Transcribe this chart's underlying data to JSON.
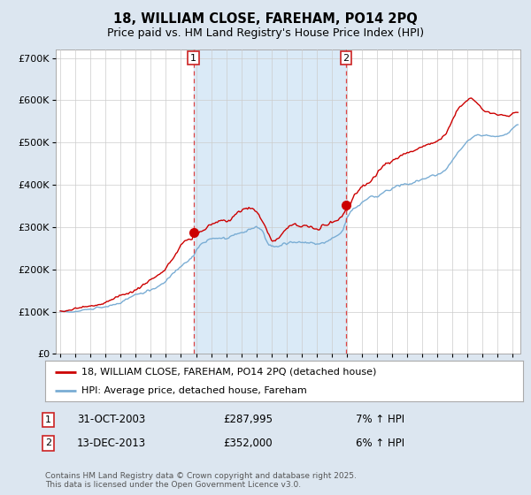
{
  "title": "18, WILLIAM CLOSE, FAREHAM, PO14 2PQ",
  "subtitle": "Price paid vs. HM Land Registry's House Price Index (HPI)",
  "ylim": [
    0,
    700000
  ],
  "xlim_start": 1994.7,
  "xlim_end": 2025.5,
  "sale1_x": 2003.83,
  "sale1_y": 287995,
  "sale1_label": "1",
  "sale1_date": "31-OCT-2003",
  "sale1_price": "£287,995",
  "sale1_hpi": "7% ↑ HPI",
  "sale2_x": 2013.95,
  "sale2_y": 352000,
  "sale2_label": "2",
  "sale2_date": "13-DEC-2013",
  "sale2_price": "£352,000",
  "sale2_hpi": "6% ↑ HPI",
  "line_color_red": "#cc0000",
  "line_color_blue": "#7aadd4",
  "fill_color_blue": "#d0e4f2",
  "shade_color": "#daeaf7",
  "bg_color": "#dce6f0",
  "plot_bg": "#ffffff",
  "grid_color": "#cccccc",
  "legend_label_red": "18, WILLIAM CLOSE, FAREHAM, PO14 2PQ (detached house)",
  "legend_label_blue": "HPI: Average price, detached house, Fareham",
  "footnote": "Contains HM Land Registry data © Crown copyright and database right 2025.\nThis data is licensed under the Open Government Licence v3.0.",
  "hpi_pts": [
    [
      1995.0,
      100000
    ],
    [
      1995.25,
      101000
    ],
    [
      1995.5,
      101500
    ],
    [
      1995.75,
      102000
    ],
    [
      1996.0,
      103000
    ],
    [
      1996.25,
      104000
    ],
    [
      1996.5,
      105500
    ],
    [
      1996.75,
      107000
    ],
    [
      1997.0,
      109000
    ],
    [
      1997.25,
      111000
    ],
    [
      1997.5,
      114000
    ],
    [
      1997.75,
      117000
    ],
    [
      1998.0,
      120000
    ],
    [
      1998.25,
      122000
    ],
    [
      1998.5,
      124000
    ],
    [
      1998.75,
      126000
    ],
    [
      1999.0,
      128000
    ],
    [
      1999.25,
      131000
    ],
    [
      1999.5,
      135000
    ],
    [
      1999.75,
      139000
    ],
    [
      2000.0,
      143000
    ],
    [
      2000.25,
      147000
    ],
    [
      2000.5,
      150000
    ],
    [
      2000.75,
      153000
    ],
    [
      2001.0,
      156000
    ],
    [
      2001.25,
      161000
    ],
    [
      2001.5,
      166000
    ],
    [
      2001.75,
      171000
    ],
    [
      2002.0,
      177000
    ],
    [
      2002.25,
      185000
    ],
    [
      2002.5,
      194000
    ],
    [
      2002.75,
      203000
    ],
    [
      2003.0,
      213000
    ],
    [
      2003.25,
      222000
    ],
    [
      2003.5,
      230000
    ],
    [
      2003.75,
      238000
    ],
    [
      2003.83,
      240000
    ],
    [
      2004.0,
      248000
    ],
    [
      2004.25,
      256000
    ],
    [
      2004.5,
      260000
    ],
    [
      2004.75,
      263000
    ],
    [
      2005.0,
      265000
    ],
    [
      2005.25,
      267000
    ],
    [
      2005.5,
      268000
    ],
    [
      2005.75,
      269000
    ],
    [
      2006.0,
      271000
    ],
    [
      2006.25,
      275000
    ],
    [
      2006.5,
      280000
    ],
    [
      2006.75,
      286000
    ],
    [
      2007.0,
      291000
    ],
    [
      2007.25,
      297000
    ],
    [
      2007.5,
      302000
    ],
    [
      2007.75,
      305000
    ],
    [
      2008.0,
      305000
    ],
    [
      2008.25,
      300000
    ],
    [
      2008.5,
      290000
    ],
    [
      2008.75,
      277000
    ],
    [
      2009.0,
      267000
    ],
    [
      2009.25,
      265000
    ],
    [
      2009.5,
      270000
    ],
    [
      2009.75,
      276000
    ],
    [
      2010.0,
      281000
    ],
    [
      2010.25,
      284000
    ],
    [
      2010.5,
      285000
    ],
    [
      2010.75,
      284000
    ],
    [
      2011.0,
      283000
    ],
    [
      2011.25,
      283000
    ],
    [
      2011.5,
      282000
    ],
    [
      2011.75,
      281000
    ],
    [
      2012.0,
      280000
    ],
    [
      2012.25,
      281000
    ],
    [
      2012.5,
      283000
    ],
    [
      2012.75,
      285000
    ],
    [
      2013.0,
      288000
    ],
    [
      2013.25,
      292000
    ],
    [
      2013.5,
      298000
    ],
    [
      2013.75,
      308000
    ],
    [
      2013.95,
      325000
    ],
    [
      2014.0,
      335000
    ],
    [
      2014.25,
      350000
    ],
    [
      2014.5,
      360000
    ],
    [
      2014.75,
      368000
    ],
    [
      2015.0,
      373000
    ],
    [
      2015.25,
      378000
    ],
    [
      2015.5,
      382000
    ],
    [
      2015.75,
      385000
    ],
    [
      2016.0,
      388000
    ],
    [
      2016.25,
      393000
    ],
    [
      2016.5,
      398000
    ],
    [
      2016.75,
      402000
    ],
    [
      2017.0,
      405000
    ],
    [
      2017.25,
      408000
    ],
    [
      2017.5,
      410000
    ],
    [
      2017.75,
      412000
    ],
    [
      2018.0,
      413000
    ],
    [
      2018.25,
      415000
    ],
    [
      2018.5,
      418000
    ],
    [
      2018.75,
      420000
    ],
    [
      2019.0,
      422000
    ],
    [
      2019.25,
      425000
    ],
    [
      2019.5,
      428000
    ],
    [
      2019.75,
      430000
    ],
    [
      2020.0,
      432000
    ],
    [
      2020.25,
      435000
    ],
    [
      2020.5,
      442000
    ],
    [
      2020.75,
      455000
    ],
    [
      2021.0,
      466000
    ],
    [
      2021.25,
      480000
    ],
    [
      2021.5,
      492000
    ],
    [
      2021.75,
      503000
    ],
    [
      2022.0,
      512000
    ],
    [
      2022.25,
      520000
    ],
    [
      2022.5,
      525000
    ],
    [
      2022.75,
      528000
    ],
    [
      2023.0,
      528000
    ],
    [
      2023.25,
      527000
    ],
    [
      2023.5,
      525000
    ],
    [
      2023.75,
      524000
    ],
    [
      2024.0,
      524000
    ],
    [
      2024.25,
      525000
    ],
    [
      2024.5,
      527000
    ],
    [
      2024.75,
      530000
    ],
    [
      2025.0,
      540000
    ],
    [
      2025.3,
      548000
    ]
  ],
  "prop_pts": [
    [
      1995.0,
      102000
    ],
    [
      1995.25,
      103000
    ],
    [
      1995.5,
      104000
    ],
    [
      1995.75,
      105000
    ],
    [
      1996.0,
      107000
    ],
    [
      1996.25,
      109000
    ],
    [
      1996.5,
      111000
    ],
    [
      1996.75,
      113000
    ],
    [
      1997.0,
      116000
    ],
    [
      1997.25,
      119000
    ],
    [
      1997.5,
      123000
    ],
    [
      1997.75,
      127000
    ],
    [
      1998.0,
      130000
    ],
    [
      1998.25,
      133000
    ],
    [
      1998.5,
      136000
    ],
    [
      1998.75,
      139000
    ],
    [
      1999.0,
      143000
    ],
    [
      1999.25,
      148000
    ],
    [
      1999.5,
      154000
    ],
    [
      1999.75,
      160000
    ],
    [
      2000.0,
      165000
    ],
    [
      2000.25,
      170000
    ],
    [
      2000.5,
      174000
    ],
    [
      2000.75,
      178000
    ],
    [
      2001.0,
      183000
    ],
    [
      2001.25,
      190000
    ],
    [
      2001.5,
      198000
    ],
    [
      2001.75,
      206000
    ],
    [
      2002.0,
      215000
    ],
    [
      2002.25,
      226000
    ],
    [
      2002.5,
      238000
    ],
    [
      2002.75,
      251000
    ],
    [
      2003.0,
      263000
    ],
    [
      2003.25,
      273000
    ],
    [
      2003.5,
      280000
    ],
    [
      2003.75,
      285000
    ],
    [
      2003.83,
      287995
    ],
    [
      2004.0,
      290000
    ],
    [
      2004.25,
      300000
    ],
    [
      2004.5,
      306000
    ],
    [
      2004.75,
      310000
    ],
    [
      2005.0,
      312000
    ],
    [
      2005.25,
      315000
    ],
    [
      2005.5,
      318000
    ],
    [
      2005.75,
      320000
    ],
    [
      2006.0,
      322000
    ],
    [
      2006.25,
      328000
    ],
    [
      2006.5,
      335000
    ],
    [
      2006.75,
      342000
    ],
    [
      2007.0,
      350000
    ],
    [
      2007.25,
      356000
    ],
    [
      2007.5,
      358000
    ],
    [
      2007.75,
      356000
    ],
    [
      2008.0,
      352000
    ],
    [
      2008.25,
      342000
    ],
    [
      2008.5,
      328000
    ],
    [
      2008.75,
      312000
    ],
    [
      2009.0,
      298000
    ],
    [
      2009.25,
      292000
    ],
    [
      2009.5,
      298000
    ],
    [
      2009.75,
      308000
    ],
    [
      2010.0,
      318000
    ],
    [
      2010.25,
      322000
    ],
    [
      2010.5,
      322000
    ],
    [
      2010.75,
      320000
    ],
    [
      2011.0,
      318000
    ],
    [
      2011.25,
      320000
    ],
    [
      2011.5,
      322000
    ],
    [
      2011.75,
      320000
    ],
    [
      2012.0,
      318000
    ],
    [
      2012.25,
      320000
    ],
    [
      2012.5,
      324000
    ],
    [
      2012.75,
      328000
    ],
    [
      2013.0,
      332000
    ],
    [
      2013.25,
      336000
    ],
    [
      2013.5,
      340000
    ],
    [
      2013.75,
      346000
    ],
    [
      2013.95,
      352000
    ],
    [
      2014.0,
      358000
    ],
    [
      2014.25,
      375000
    ],
    [
      2014.5,
      392000
    ],
    [
      2014.75,
      405000
    ],
    [
      2015.0,
      415000
    ],
    [
      2015.25,
      425000
    ],
    [
      2015.5,
      435000
    ],
    [
      2015.75,
      445000
    ],
    [
      2016.0,
      453000
    ],
    [
      2016.25,
      460000
    ],
    [
      2016.5,
      468000
    ],
    [
      2016.75,
      474000
    ],
    [
      2017.0,
      478000
    ],
    [
      2017.25,
      483000
    ],
    [
      2017.5,
      487000
    ],
    [
      2017.75,
      490000
    ],
    [
      2018.0,
      492000
    ],
    [
      2018.25,
      495000
    ],
    [
      2018.5,
      498000
    ],
    [
      2018.75,
      500000
    ],
    [
      2019.0,
      502000
    ],
    [
      2019.25,
      506000
    ],
    [
      2019.5,
      510000
    ],
    [
      2019.75,
      514000
    ],
    [
      2020.0,
      516000
    ],
    [
      2020.25,
      520000
    ],
    [
      2020.5,
      532000
    ],
    [
      2020.75,
      550000
    ],
    [
      2021.0,
      566000
    ],
    [
      2021.25,
      582000
    ],
    [
      2021.5,
      595000
    ],
    [
      2021.75,
      605000
    ],
    [
      2022.0,
      612000
    ],
    [
      2022.25,
      618000
    ],
    [
      2022.5,
      614000
    ],
    [
      2022.75,
      605000
    ],
    [
      2023.0,
      595000
    ],
    [
      2023.25,
      590000
    ],
    [
      2023.5,
      585000
    ],
    [
      2023.75,
      582000
    ],
    [
      2024.0,
      580000
    ],
    [
      2024.25,
      578000
    ],
    [
      2024.5,
      575000
    ],
    [
      2024.75,
      572000
    ],
    [
      2025.0,
      580000
    ],
    [
      2025.3,
      582000
    ]
  ]
}
